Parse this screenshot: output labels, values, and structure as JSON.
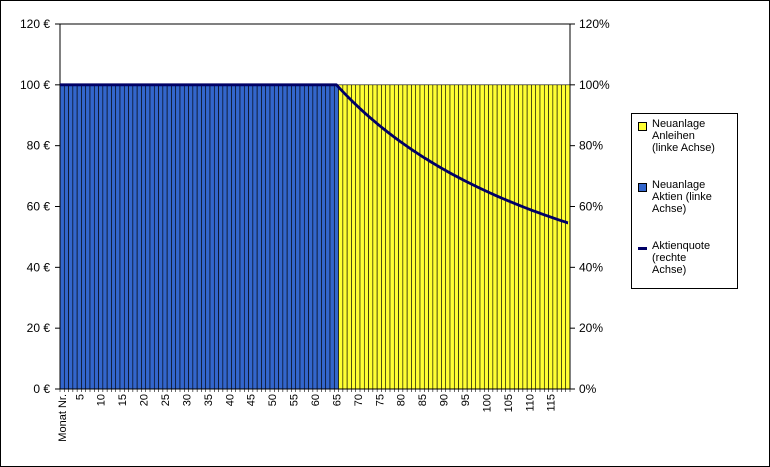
{
  "chart_data": {
    "type": "bar",
    "stacked": true,
    "xlabel_first": "Monat Nr.",
    "x_tick_labels": [
      "5",
      "10",
      "15",
      "20",
      "25",
      "30",
      "35",
      "40",
      "45",
      "50",
      "55",
      "60",
      "65",
      "70",
      "75",
      "80",
      "85",
      "90",
      "95",
      "100",
      "105",
      "110",
      "115"
    ],
    "months": 119,
    "left_axis": {
      "ticks": [
        "0 €",
        "20 €",
        "40 €",
        "60 €",
        "80 €",
        "100 €",
        "120 €"
      ],
      "range": [
        0,
        120
      ]
    },
    "right_axis": {
      "ticks": [
        "0%",
        "20%",
        "40%",
        "60%",
        "80%",
        "100%",
        "120%"
      ],
      "range": [
        0,
        120
      ]
    },
    "series": [
      {
        "name": "Neuanlage Anleihen (linke Achse)",
        "color": "#FFFF33",
        "rule": "0 for months 1-65, 100 € for months 66-119"
      },
      {
        "name": "Neuanlage Aktien (linke Achse)",
        "color": "#3366CC",
        "rule": "100 € for months 1-65, 0 for months 66-119"
      },
      {
        "name": "Aktienquote (rechte Achse)",
        "color": "#000066",
        "rule": "100% for months 1-65, then 65 / month × 100 %"
      }
    ],
    "grid": false,
    "legend_position": "right"
  },
  "legend": [
    {
      "label": "Neuanlage\nAnleihen\n(linke Achse)",
      "kind": "box",
      "color": "#FFFF33"
    },
    {
      "label": "Neuanlage\nAktien (linke\nAchse)",
      "kind": "box",
      "color": "#3366CC"
    },
    {
      "label": "Aktienquote\n(rechte\nAchse)",
      "kind": "line",
      "color": "#000066"
    }
  ]
}
